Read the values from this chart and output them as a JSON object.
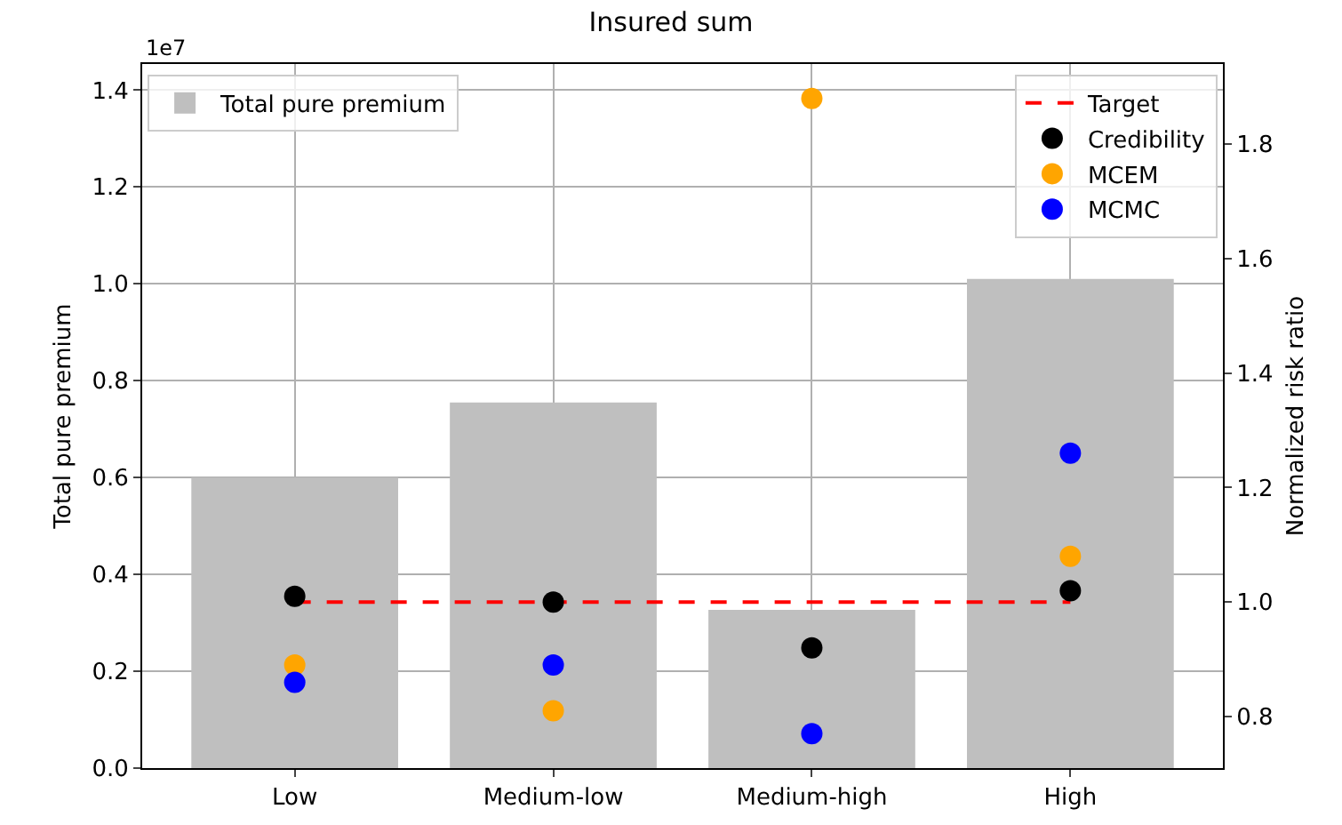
{
  "chart_data": {
    "type": "bar",
    "title": "Insured sum",
    "ylabel": "Total pure premium",
    "y2label": "Normalized risk ratio",
    "categories": [
      "Low",
      "Medium-low",
      "Medium-high",
      "High"
    ],
    "series": [
      {
        "name": "Total pure premium",
        "color": "#bfbfbf",
        "values": [
          0.6,
          0.755,
          0.327,
          1.01
        ]
      },
      {
        "name": "Target",
        "type": "line",
        "axis": "y2",
        "color": "#ff0000",
        "line_style": "dashed",
        "marker": "none",
        "values": [
          1.0,
          1.0,
          1.0,
          1.0
        ]
      },
      {
        "name": "Credibility",
        "type": "scatter",
        "axis": "y2",
        "color": "#000000",
        "marker": "circle",
        "values": [
          1.01,
          1.0,
          0.92,
          1.02
        ]
      },
      {
        "name": "MCEM",
        "type": "scatter",
        "axis": "y2",
        "color": "#ffa500",
        "marker": "circle",
        "values": [
          0.89,
          0.81,
          1.88,
          1.08
        ]
      },
      {
        "name": "MCMC",
        "type": "scatter",
        "axis": "y2",
        "color": "#0000ff",
        "marker": "circle",
        "values": [
          0.86,
          0.89,
          0.77,
          1.26
        ]
      }
    ],
    "ylim": [
      0,
      1.454
    ],
    "yticks": [
      {
        "value": 0,
        "label": "0.0"
      },
      0.2,
      0.4,
      0.6,
      0.8,
      {
        "value": 1.0,
        "label": "1.0"
      },
      1.2,
      1.4
    ],
    "y2lim": [
      0.71,
      1.94
    ],
    "y2ticks": [
      {
        "value": 0.8,
        "label": "0.8"
      },
      {
        "value": 1.0,
        "label": "1.0"
      },
      {
        "value": 1.2,
        "label": "1.2"
      },
      {
        "value": 1.4,
        "label": "1.4"
      },
      {
        "value": 1.6,
        "label": "1.6"
      },
      {
        "value": 1.8,
        "label": "1.8"
      }
    ],
    "annotations": [
      "1e7"
    ],
    "grid": true,
    "legend": "top right"
  }
}
